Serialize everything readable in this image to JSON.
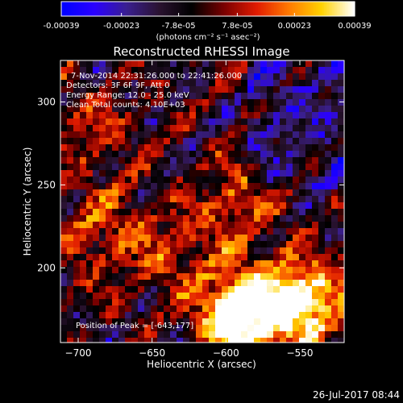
{
  "chart_data": {
    "type": "heatmap",
    "title": "Reconstructed RHESSI Image",
    "xlabel": "Heliocentric X (arcsec)",
    "ylabel": "Heliocentric Y (arcsec)",
    "xlim": [
      -712,
      -520
    ],
    "ylim": [
      155,
      325
    ],
    "x_ticks": [
      -700,
      -650,
      -600,
      -550
    ],
    "y_ticks": [
      200,
      250,
      300
    ],
    "colorbar": {
      "min": -0.00039,
      "max": 0.00039,
      "tick_values": [
        -0.00039,
        -0.00023,
        -7.8e-05,
        7.8e-05,
        0.00023,
        0.00039
      ],
      "tick_labels": [
        "-0.00039",
        "-0.00023",
        "-7.8e-05",
        "7.8e-05",
        "0.00023",
        "0.00039"
      ],
      "units": "(photons cm⁻² s⁻¹ asec⁻²)",
      "colors": [
        "#0000ff",
        "#2a00ff",
        "#3a1f8f",
        "#2a1230",
        "#000000",
        "#7a0000",
        "#e11b00",
        "#ff7a00",
        "#ffd200",
        "#ffffff"
      ]
    },
    "annotations": [
      "7-Nov-2014 22:31:26.000 to 22:41:26.000",
      "Detectors: 3F 6F 9F, Att 0",
      "Energy Range: 12.0 - 25.0 keV",
      "Clean    Total counts: 4.10E+03"
    ],
    "peak_label": "Position of Peak = [-643,177]",
    "peak": [
      -643,
      177
    ],
    "grid": false
  },
  "footer": {
    "timestamp": "26-Jul-2017 08:44"
  }
}
